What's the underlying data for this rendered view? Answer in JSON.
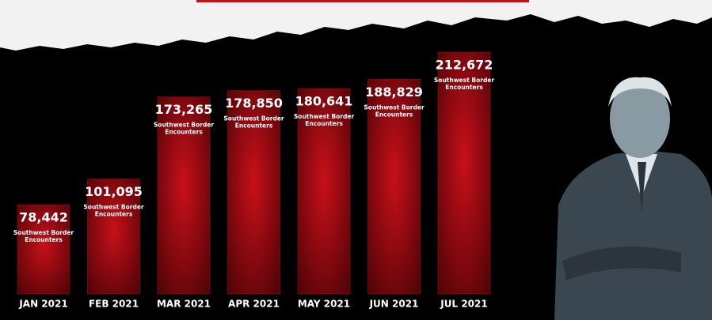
{
  "chart_data": {
    "type": "bar",
    "categories": [
      "JAN 2021",
      "FEB 2021",
      "MAR 2021",
      "APR 2021",
      "MAY 2021",
      "JUN 2021",
      "JUL 2021"
    ],
    "values": [
      78442,
      101095,
      173265,
      178850,
      180641,
      188829,
      212672
    ],
    "value_labels": [
      "78,442",
      "101,095",
      "173,265",
      "178,850",
      "180,641",
      "188,829",
      "212,672"
    ],
    "bar_caption": "Southwest Border Encounters",
    "color": "#b30d12",
    "ylim": [
      0,
      220000
    ]
  }
}
